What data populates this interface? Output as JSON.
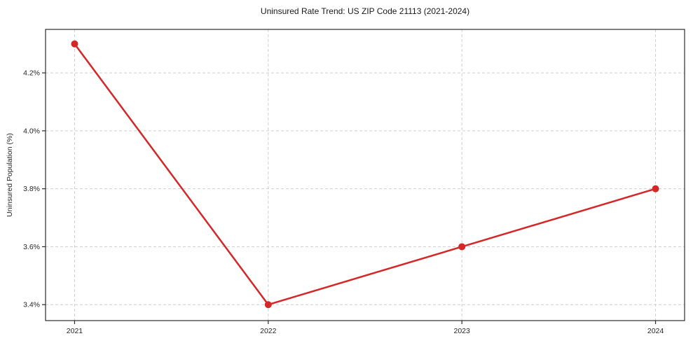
{
  "chart_data": {
    "type": "line",
    "title": "Uninsured Rate Trend: US ZIP Code 21113 (2021-2024)",
    "xlabel": "",
    "ylabel": "Uninsured Population (%)",
    "x": [
      2021,
      2022,
      2023,
      2024
    ],
    "values": [
      4.3,
      3.4,
      3.6,
      3.8
    ],
    "x_tick_labels": [
      "2021",
      "2022",
      "2023",
      "2024"
    ],
    "y_ticks": [
      3.4,
      3.6,
      3.8,
      4.0,
      4.2
    ],
    "y_tick_labels": [
      "3.4%",
      "3.6%",
      "3.8%",
      "4.0%",
      "4.2%"
    ],
    "xlim": [
      2020.85,
      2024.15
    ],
    "ylim": [
      3.345,
      4.35
    ],
    "grid": true,
    "legend": "none",
    "colors": {
      "line": "#d62728",
      "marker": "#d62728",
      "grid": "#cfcfcf",
      "spine": "#2b2b2b",
      "tick": "#2b2b2b",
      "text": "#262626",
      "background": "#ffffff"
    }
  }
}
